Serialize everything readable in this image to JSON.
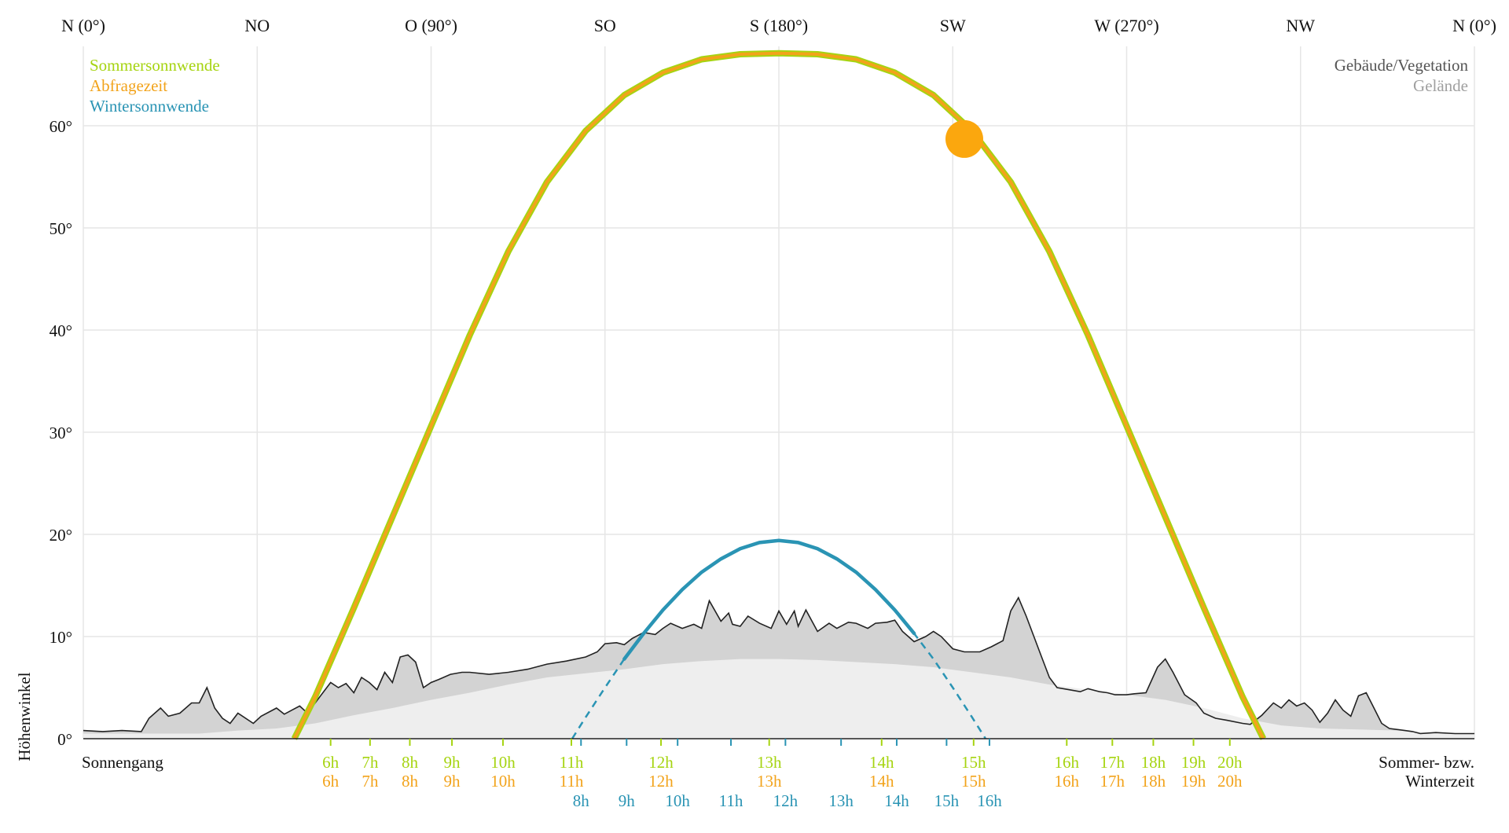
{
  "chart_data": {
    "type": "line",
    "ylabel": "Höhenwinkel",
    "bottom_left_label": "Sonnengang",
    "bottom_right_label": [
      "Sommer- bzw.",
      "Winterzeit"
    ],
    "xlim": [
      0,
      360
    ],
    "ylim": [
      0,
      68
    ],
    "yticks": [
      {
        "value": 0,
        "label": "0°"
      },
      {
        "value": 10,
        "label": "10°"
      },
      {
        "value": 20,
        "label": "20°"
      },
      {
        "value": 30,
        "label": "30°"
      },
      {
        "value": 40,
        "label": "40°"
      },
      {
        "value": 50,
        "label": "50°"
      },
      {
        "value": 60,
        "label": "60°"
      }
    ],
    "direction_ticks": [
      {
        "value": 0,
        "label": "N (0°)"
      },
      {
        "value": 45,
        "label": "NO"
      },
      {
        "value": 90,
        "label": "O (90°)"
      },
      {
        "value": 135,
        "label": "SO"
      },
      {
        "value": 180,
        "label": "S (180°)"
      },
      {
        "value": 225,
        "label": "SW"
      },
      {
        "value": 270,
        "label": "W (270°)"
      },
      {
        "value": 315,
        "label": "NW"
      },
      {
        "value": 360,
        "label": "N (0°)"
      }
    ],
    "legend_left": [
      {
        "label": "Sommersonnwende",
        "color": "#a6d411"
      },
      {
        "label": "Abfragezeit",
        "color": "#f2a31b"
      },
      {
        "label": "Wintersonnwende",
        "color": "#2a94b4"
      }
    ],
    "legend_right": [
      {
        "label": "Gebäude/Vegetation",
        "color": "#555555"
      },
      {
        "label": "Gelände",
        "color": "#a0a0a0"
      }
    ],
    "colors": {
      "summer": "#a6d411",
      "query": "#f2a31b",
      "winter": "#2a94b4",
      "sun": "#fba70e",
      "obstacle_fill": "#d3d3d3",
      "obstacle_line": "#222222",
      "terrain_fill": "#eeeeee",
      "grid": "#e6e6e6"
    },
    "series": [
      {
        "name": "Sommersonnwende",
        "x": [
          54.6,
          60,
          70,
          80,
          90,
          100,
          110,
          120,
          130,
          140,
          150,
          160,
          170,
          180,
          190,
          200,
          210,
          220,
          230,
          240,
          250,
          260,
          270,
          280,
          290,
          300,
          305.4
        ],
        "y": [
          0,
          4.1,
          12.8,
          21.7,
          30.6,
          39.5,
          47.7,
          54.5,
          59.5,
          63.0,
          65.2,
          66.5,
          67.0,
          67.1,
          67.0,
          66.5,
          65.2,
          63.0,
          59.5,
          54.5,
          47.7,
          39.5,
          30.6,
          21.7,
          12.8,
          4.1,
          0
        ]
      },
      {
        "name": "Abfragezeit",
        "x": [
          54.6,
          60,
          70,
          80,
          90,
          100,
          110,
          120,
          130,
          140,
          150,
          160,
          170,
          180,
          190,
          200,
          210,
          220,
          230,
          240,
          250,
          260,
          270,
          280,
          290,
          300,
          305.4
        ],
        "y": [
          0,
          4.1,
          12.8,
          21.7,
          30.6,
          39.5,
          47.7,
          54.5,
          59.5,
          63.0,
          65.2,
          66.5,
          67.0,
          67.1,
          67.0,
          66.5,
          65.2,
          63.0,
          59.5,
          54.5,
          47.7,
          39.5,
          30.6,
          21.7,
          12.8,
          4.1,
          0
        ]
      },
      {
        "name": "Wintersonnwende",
        "x": [
          126.5,
          130,
          135,
          140,
          145,
          150,
          155,
          160,
          165,
          170,
          175,
          180,
          185,
          190,
          195,
          200,
          205,
          210,
          215,
          220,
          225,
          230,
          233.5
        ],
        "y": [
          0,
          2.1,
          5.0,
          7.8,
          10.3,
          12.6,
          14.6,
          16.3,
          17.6,
          18.6,
          19.2,
          19.4,
          19.2,
          18.6,
          17.6,
          16.3,
          14.6,
          12.6,
          10.3,
          7.8,
          5.0,
          2.1,
          0
        ],
        "visible_from": 140,
        "visible_to": 218
      }
    ],
    "sun_position": {
      "azimuth": 228,
      "elevation": 58.7
    },
    "obstacles": {
      "x": [
        0,
        5,
        10,
        15,
        17,
        20,
        22,
        25,
        28,
        30,
        32,
        34,
        36,
        38,
        40,
        44,
        46,
        50,
        52,
        54,
        56,
        58,
        60,
        62,
        64,
        66,
        68,
        70,
        72,
        74,
        76,
        78,
        80,
        82,
        84,
        86,
        88,
        90,
        92,
        95,
        98,
        100,
        105,
        110,
        115,
        120,
        125,
        130,
        133,
        135,
        138,
        140,
        142,
        145,
        148,
        150,
        152,
        155,
        158,
        160,
        162,
        165,
        167,
        168,
        170,
        172,
        175,
        178,
        180,
        182,
        184,
        185,
        187,
        190,
        193,
        195,
        198,
        200,
        203,
        205,
        208,
        210,
        212,
        215,
        218,
        220,
        222,
        225,
        228,
        232,
        235,
        238,
        240,
        242,
        244,
        246,
        248,
        250,
        252,
        255,
        258,
        260,
        263,
        265,
        267,
        270,
        272,
        275,
        278,
        280,
        282,
        285,
        288,
        290,
        293,
        296,
        300,
        302,
        305,
        308,
        310,
        312,
        314,
        316,
        318,
        320,
        322,
        324,
        326,
        328,
        330,
        332,
        334,
        336,
        338,
        340,
        342,
        344,
        346,
        350,
        355,
        360
      ],
      "y": [
        0.8,
        0.7,
        0.8,
        0.7,
        2.0,
        3.0,
        2.2,
        2.5,
        3.5,
        3.5,
        5.0,
        3.0,
        2.0,
        1.5,
        2.5,
        1.5,
        2.2,
        3.0,
        2.4,
        2.8,
        3.2,
        2.5,
        3.5,
        4.5,
        5.5,
        5.0,
        5.4,
        4.5,
        6.0,
        5.5,
        4.8,
        6.5,
        5.5,
        8.0,
        8.2,
        7.5,
        5.0,
        5.5,
        5.8,
        6.3,
        6.5,
        6.5,
        6.3,
        6.5,
        6.8,
        7.3,
        7.6,
        8.0,
        8.5,
        9.3,
        9.4,
        9.2,
        9.8,
        10.4,
        10.2,
        10.8,
        11.3,
        10.8,
        11.2,
        10.8,
        13.5,
        11.5,
        12.3,
        11.2,
        11.0,
        12.0,
        11.3,
        10.8,
        12.5,
        11.2,
        12.5,
        11.0,
        12.6,
        10.5,
        11.3,
        10.8,
        11.4,
        11.3,
        10.8,
        11.3,
        11.4,
        11.6,
        10.5,
        9.5,
        10.0,
        10.5,
        10.0,
        8.8,
        8.5,
        8.5,
        9.0,
        9.6,
        12.5,
        13.8,
        12.0,
        10.0,
        8.0,
        6.0,
        5.0,
        4.8,
        4.6,
        4.9,
        4.6,
        4.5,
        4.3,
        4.3,
        4.4,
        4.5,
        7.0,
        7.8,
        6.5,
        4.3,
        3.5,
        2.5,
        2.0,
        1.8,
        1.5,
        1.4,
        2.3,
        3.5,
        3.0,
        3.8,
        3.2,
        3.5,
        2.8,
        1.6,
        2.5,
        3.8,
        2.8,
        2.2,
        4.2,
        4.5,
        3.0,
        1.5,
        1.0,
        0.9,
        0.8,
        0.7,
        0.5,
        0.6,
        0.5,
        0.5
      ]
    },
    "terrain": {
      "x": [
        0,
        10,
        20,
        30,
        40,
        50,
        60,
        70,
        80,
        90,
        100,
        110,
        120,
        130,
        140,
        150,
        160,
        170,
        180,
        190,
        200,
        210,
        220,
        230,
        240,
        250,
        260,
        270,
        280,
        290,
        300,
        310,
        320,
        330,
        340,
        350,
        360
      ],
      "y": [
        0.5,
        0.5,
        0.5,
        0.5,
        0.8,
        1.0,
        1.5,
        2.3,
        3.0,
        3.8,
        4.5,
        5.3,
        6.0,
        6.4,
        6.8,
        7.3,
        7.6,
        7.8,
        7.8,
        7.7,
        7.5,
        7.3,
        7.0,
        6.5,
        6.0,
        5.3,
        4.8,
        4.3,
        3.8,
        3.0,
        2.0,
        1.3,
        1.0,
        0.9,
        0.8,
        0.6,
        0.5
      ]
    },
    "hour_labels": {
      "summer": [
        {
          "x": 64.0,
          "label": "6h"
        },
        {
          "x": 74.2,
          "label": "7h"
        },
        {
          "x": 84.5,
          "label": "8h"
        },
        {
          "x": 95.4,
          "label": "9h"
        },
        {
          "x": 108.6,
          "label": "10h"
        },
        {
          "x": 126.3,
          "label": "11h"
        },
        {
          "x": 149.5,
          "label": "12h"
        },
        {
          "x": 177.5,
          "label": "13h"
        },
        {
          "x": 206.6,
          "label": "14h"
        },
        {
          "x": 230.4,
          "label": "15h"
        },
        {
          "x": 254.5,
          "label": "16h"
        },
        {
          "x": 266.3,
          "label": "17h"
        },
        {
          "x": 276.9,
          "label": "18h"
        },
        {
          "x": 287.3,
          "label": "19h"
        },
        {
          "x": 296.7,
          "label": "20h"
        }
      ],
      "query": [
        {
          "x": 64.0,
          "label": "6h"
        },
        {
          "x": 74.2,
          "label": "7h"
        },
        {
          "x": 84.5,
          "label": "8h"
        },
        {
          "x": 95.4,
          "label": "9h"
        },
        {
          "x": 108.6,
          "label": "10h"
        },
        {
          "x": 126.3,
          "label": "11h"
        },
        {
          "x": 149.5,
          "label": "12h"
        },
        {
          "x": 177.5,
          "label": "13h"
        },
        {
          "x": 206.6,
          "label": "14h"
        },
        {
          "x": 230.4,
          "label": "15h"
        },
        {
          "x": 254.5,
          "label": "16h"
        },
        {
          "x": 266.3,
          "label": "17h"
        },
        {
          "x": 276.9,
          "label": "18h"
        },
        {
          "x": 287.3,
          "label": "19h"
        },
        {
          "x": 296.7,
          "label": "20h"
        }
      ],
      "winter": [
        {
          "x": 128.8,
          "label": "8h"
        },
        {
          "x": 140.6,
          "label": "9h"
        },
        {
          "x": 153.8,
          "label": "10h"
        },
        {
          "x": 167.6,
          "label": "11h"
        },
        {
          "x": 181.7,
          "label": "12h"
        },
        {
          "x": 196.1,
          "label": "13h"
        },
        {
          "x": 210.5,
          "label": "14h"
        },
        {
          "x": 223.4,
          "label": "15h"
        },
        {
          "x": 234.5,
          "label": "16h"
        }
      ]
    }
  }
}
